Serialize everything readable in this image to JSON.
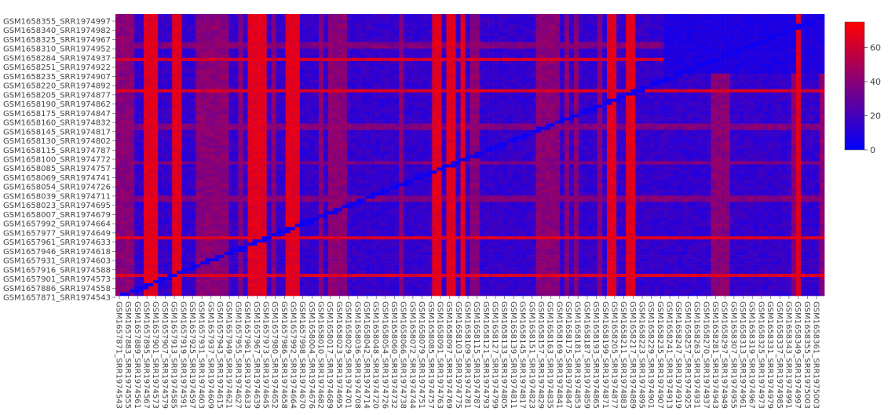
{
  "chart_data": {
    "type": "heatmap",
    "title": "",
    "xlabel": "",
    "ylabel": "",
    "colorscale": [
      "#0000ff",
      "#ff0000"
    ],
    "zlim": [
      0,
      75
    ],
    "colorbar_ticks": [
      0,
      20,
      40,
      60
    ],
    "colorbar_labels": [
      "0",
      "20",
      "40",
      "60"
    ],
    "x_labels": [
      "GSM1657871_SRR1974543",
      "GSM1657883_SRR1974555",
      "GSM1657889_SRR1974561",
      "GSM1657895_SRR1974567",
      "GSM1657901_SRR1974573",
      "GSM1657907_SRR1974579",
      "GSM1657913_SRR1974585",
      "GSM1657919_SRR1974591",
      "GSM1657925_SRR1974597",
      "GSM1657931_SRR1974603",
      "GSM1657937_SRR1974609",
      "GSM1657943_SRR1974615",
      "GSM1657949_SRR1974621",
      "GSM1657955_SRR1974627",
      "GSM1657961_SRR1974633",
      "GSM1657967_SRR1974639",
      "GSM1657973_SRR1974645",
      "GSM1657980_SRR1974652",
      "GSM1657986_SRR1974658",
      "GSM1657992_SRR1974664",
      "GSM1657998_SRR1974670",
      "GSM1658004_SRR1974676",
      "GSM1658010_SRR1974682",
      "GSM1658017_SRR1974689",
      "GSM1658023_SRR1974695",
      "GSM1658029_SRR1974701",
      "GSM1658036_SRR1974708",
      "GSM1658042_SRR1974714",
      "GSM1658048_SRR1974720",
      "GSM1658054_SRR1974726",
      "GSM1658060_SRR1974732",
      "GSM1658066_SRR1974738",
      "GSM1658072_SRR1974744",
      "GSM1658079_SRR1974751",
      "GSM1658085_SRR1974757",
      "GSM1658091_SRR1974763",
      "GSM1658097_SRR1974769",
      "GSM1658103_SRR1974775",
      "GSM1658109_SRR1974781",
      "GSM1658115_SRR1974787",
      "GSM1658121_SRR1974793",
      "GSM1658127_SRR1974799",
      "GSM1658133_SRR1974805",
      "GSM1658139_SRR1974811",
      "GSM1658145_SRR1974817",
      "GSM1658151_SRR1974823",
      "GSM1658157_SRR1974829",
      "GSM1658163_SRR1974835",
      "GSM1658169_SRR1974841",
      "GSM1658175_SRR1974847",
      "GSM1658181_SRR1974853",
      "GSM1658187_SRR1974859",
      "GSM1658193_SRR1974865",
      "GSM1658199_SRR1974871",
      "GSM1658205_SRR1974877",
      "GSM1658211_SRR1974883",
      "GSM1658217_SRR1974889",
      "GSM1658223_SRR1974895",
      "GSM1658229_SRR1974901",
      "GSM1658235_SRR1974907",
      "GSM1658241_SRR1974913",
      "GSM1658247_SRR1974919",
      "GSM1658257_SRR1974925",
      "GSM1658263_SRR1974931",
      "GSM1658270_SRR1974937",
      "GSM1658281_SRR1974943",
      "GSM1658297_SRR1974949",
      "GSM1658307_SRR1974955",
      "GSM1658313_SRR1974961",
      "GSM1658319_SRR1974967",
      "GSM1658325_SRR1974973",
      "GSM1658331_SRR1974979",
      "GSM1658337_SRR1974985",
      "GSM1658343_SRR1974991",
      "GSM1658349_SRR1974997",
      "GSM1658355_SRR1975003",
      "GSM1658361_SRR1975003"
    ],
    "y_labels": [
      "GSM1657871_SRR1974543",
      "GSM1657886_SRR1974558",
      "GSM1657901_SRR1974573",
      "GSM1657916_SRR1974588",
      "GSM1657931_SRR1974603",
      "GSM1657946_SRR1974618",
      "GSM1657961_SRR1974633",
      "GSM1657977_SRR1974649",
      "GSM1657992_SRR1974664",
      "GSM1658007_SRR1974679",
      "GSM1658023_SRR1974695",
      "GSM1658039_SRR1974711",
      "GSM1658054_SRR1974726",
      "GSM1658069_SRR1974741",
      "GSM1658085_SRR1974757",
      "GSM1658100_SRR1974772",
      "GSM1658115_SRR1974787",
      "GSM1658130_SRR1974802",
      "GSM1658145_SRR1974817",
      "GSM1658160_SRR1974832",
      "GSM1658175_SRR1974847",
      "GSM1658190_SRR1974862",
      "GSM1658205_SRR1974877",
      "GSM1658220_SRR1974892",
      "GSM1658235_SRR1974907",
      "GSM1658251_SRR1974922",
      "GSM1658284_SRR1974937",
      "GSM1658310_SRR1974952",
      "GSM1658325_SRR1974967",
      "GSM1658340_SRR1974982",
      "GSM1658355_SRR1974997"
    ],
    "x_hot_bands": [
      [
        0.035,
        0.055
      ],
      [
        0.075,
        0.088
      ],
      [
        0.185,
        0.21
      ],
      [
        0.24,
        0.258
      ],
      [
        0.445,
        0.455
      ],
      [
        0.463,
        0.475
      ],
      [
        0.485,
        0.492
      ],
      [
        0.69,
        0.7
      ],
      [
        0.72,
        0.728
      ],
      [
        0.958,
        0.964
      ]
    ],
    "x_warm_bands": [
      [
        0.0,
        0.025
      ],
      [
        0.11,
        0.14
      ],
      [
        0.3,
        0.32
      ],
      [
        0.59,
        0.62
      ],
      [
        0.84,
        0.86
      ]
    ],
    "y_hot_bands": [
      [
        0.258,
        0.272
      ],
      [
        0.78,
        0.795
      ],
      [
        0.915,
        0.925
      ],
      [
        0.15,
        0.16
      ]
    ],
    "y_warm_bands": [
      [
        0.1,
        0.12
      ],
      [
        0.38,
        0.4
      ],
      [
        0.52,
        0.53
      ],
      [
        0.64,
        0.66
      ]
    ],
    "low_block": {
      "x": [
        0.768,
        1.0
      ],
      "y": [
        0.0,
        0.2
      ],
      "value": 6
    }
  }
}
